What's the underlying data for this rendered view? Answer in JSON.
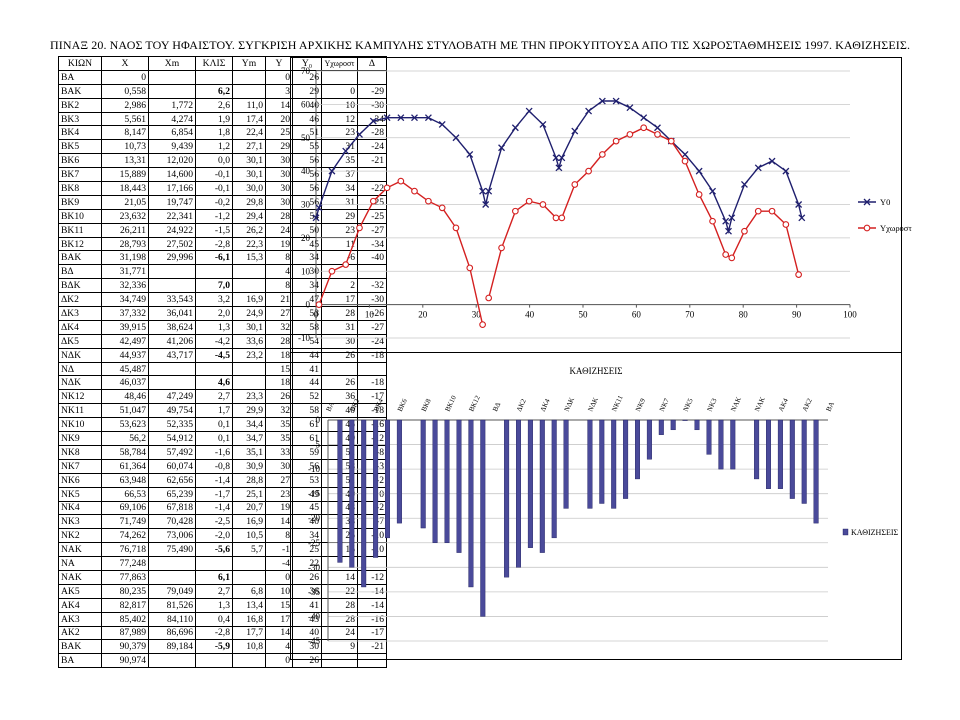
{
  "title": "ΠΙΝΑΞ 20. ΝΑΟΣ ΤΟΥ ΗΦΑΙΣΤΟΥ. ΣΥΓΚΡΙΣΗ ΑΡΧΙΚΗΣ ΚΑΜΠΥΛΗΣ ΣΤΥΛΟΒΑΤΗ ΜΕ ΤΗΝ ΠΡΟΚΥΠΤΟΥΣΑ ΑΠΟ ΤΙΣ ΧΩΡΟΣΤΑΘΜΗΣΕΙΣ 1997. ΚΑΘΙΖΗΣΕΙΣ.",
  "table": {
    "headers": [
      "ΚΙΩΝ",
      "X",
      "Xm",
      "ΚΛΙΣ",
      "Ym",
      "Y",
      "Y₀",
      "Yχωροστ",
      "Δ"
    ],
    "rows": [
      [
        "ΒΑ",
        "0",
        "",
        "",
        "",
        "0",
        "26",
        "",
        ""
      ],
      [
        "ΒΑΚ",
        "0,558",
        "",
        "6,2",
        "",
        "3",
        "29",
        "0",
        "-29"
      ],
      [
        "ΒΚ2",
        "2,986",
        "1,772",
        "2,6",
        "11,0",
        "14",
        "40",
        "10",
        "-30"
      ],
      [
        "ΒΚ3",
        "5,561",
        "4,274",
        "1,9",
        "17,4",
        "20",
        "46",
        "12",
        "-34"
      ],
      [
        "ΒΚ4",
        "8,147",
        "6,854",
        "1,8",
        "22,4",
        "25",
        "51",
        "23",
        "-28"
      ],
      [
        "ΒΚ5",
        "10,73",
        "9,439",
        "1,2",
        "27,1",
        "29",
        "55",
        "31",
        "-24"
      ],
      [
        "ΒΚ6",
        "13,31",
        "12,020",
        "0,0",
        "30,1",
        "30",
        "56",
        "35",
        "-21"
      ],
      [
        "ΒΚ7",
        "15,889",
        "14,600",
        "-0,1",
        "30,1",
        "30",
        "56",
        "37",
        ""
      ],
      [
        "ΒΚ8",
        "18,443",
        "17,166",
        "-0,1",
        "30,0",
        "30",
        "56",
        "34",
        "-22"
      ],
      [
        "ΒΚ9",
        "21,05",
        "19,747",
        "-0,2",
        "29,8",
        "30",
        "56",
        "31",
        "-25"
      ],
      [
        "ΒΚ10",
        "23,632",
        "22,341",
        "-1,2",
        "29,4",
        "28",
        "54",
        "29",
        "-25"
      ],
      [
        "ΒΚ11",
        "26,211",
        "24,922",
        "-1,5",
        "26,2",
        "24",
        "50",
        "23",
        "-27"
      ],
      [
        "ΒΚ12",
        "28,793",
        "27,502",
        "-2,8",
        "22,3",
        "19",
        "45",
        "11",
        "-34"
      ],
      [
        "ΒΑΚ",
        "31,198",
        "29,996",
        "-6,1",
        "15,3",
        "8",
        "34",
        "-6",
        "-40"
      ],
      [
        "ΒΔ",
        "31,771",
        "",
        "",
        "",
        "4",
        "30",
        "",
        ""
      ],
      [
        "ΒΔΚ",
        "32,336",
        "",
        "7,0",
        "",
        "8",
        "34",
        "2",
        "-32"
      ],
      [
        "ΔΚ2",
        "34,749",
        "33,543",
        "3,2",
        "16,9",
        "21",
        "47",
        "17",
        "-30"
      ],
      [
        "ΔΚ3",
        "37,332",
        "36,041",
        "2,0",
        "24,9",
        "27",
        "53",
        "28",
        "-26"
      ],
      [
        "ΔΚ4",
        "39,915",
        "38,624",
        "1,3",
        "30,1",
        "32",
        "58",
        "31",
        "-27"
      ],
      [
        "ΔΚ5",
        "42,497",
        "41,206",
        "-4,2",
        "33,6",
        "28",
        "54",
        "30",
        "-24"
      ],
      [
        "ΝΔΚ",
        "44,937",
        "43,717",
        "-4,5",
        "23,2",
        "18",
        "44",
        "26",
        "-18"
      ],
      [
        "ΝΔ",
        "45,487",
        "",
        "",
        "",
        "15",
        "41",
        "",
        ""
      ],
      [
        "ΝΔΚ",
        "46,037",
        "",
        "4,6",
        "",
        "18",
        "44",
        "26",
        "-18"
      ],
      [
        "ΝΚ12",
        "48,46",
        "47,249",
        "2,7",
        "23,3",
        "26",
        "52",
        "36",
        "-17"
      ],
      [
        "ΝΚ11",
        "51,047",
        "49,754",
        "1,7",
        "29,9",
        "32",
        "58",
        "40",
        "-18"
      ],
      [
        "ΝΚ10",
        "53,623",
        "52,335",
        "0,1",
        "34,4",
        "35",
        "61",
        "45",
        "-16"
      ],
      [
        "ΝΚ9",
        "56,2",
        "54,912",
        "0,1",
        "34,7",
        "35",
        "61",
        "49",
        "-12"
      ],
      [
        "ΝΚ8",
        "58,784",
        "57,492",
        "-1,6",
        "35,1",
        "33",
        "59",
        "51",
        "-8"
      ],
      [
        "ΝΚ7",
        "61,364",
        "60,074",
        "-0,8",
        "30,9",
        "30",
        "56",
        "53",
        "-3"
      ],
      [
        "ΝΚ6",
        "63,948",
        "62,656",
        "-1,4",
        "28,8",
        "27",
        "53",
        "51",
        "-2"
      ],
      [
        "ΝΚ5",
        "66,53",
        "65,239",
        "-1,7",
        "25,1",
        "23",
        "49",
        "49",
        "0"
      ],
      [
        "ΝΚ4",
        "69,106",
        "67,818",
        "-1,4",
        "20,7",
        "19",
        "45",
        "43",
        "-2"
      ],
      [
        "ΝΚ3",
        "71,749",
        "70,428",
        "-2,5",
        "16,9",
        "14",
        "40",
        "33",
        "-7"
      ],
      [
        "ΝΚ2",
        "74,262",
        "73,006",
        "-2,0",
        "10,5",
        "8",
        "34",
        "25",
        "-10"
      ],
      [
        "ΝΑΚ",
        "76,718",
        "75,490",
        "-5,6",
        "5,7",
        "-1",
        "25",
        "15",
        "-10"
      ],
      [
        "ΝΑ",
        "77,248",
        "",
        "",
        "",
        "-4",
        "22",
        "",
        ""
      ],
      [
        "ΝΑΚ",
        "77,863",
        "",
        "6,1",
        "",
        "0",
        "26",
        "14",
        "-12"
      ],
      [
        "ΑΚ5",
        "80,235",
        "79,049",
        "2,7",
        "6,8",
        "10",
        "36",
        "22",
        "-14"
      ],
      [
        "ΑΚ4",
        "82,817",
        "81,526",
        "1,3",
        "13,4",
        "15",
        "41",
        "28",
        "-14"
      ],
      [
        "ΑΚ3",
        "85,402",
        "84,110",
        "0,4",
        "16,8",
        "17",
        "43",
        "28",
        "-16"
      ],
      [
        "ΑΚ2",
        "87,989",
        "86,696",
        "-2,8",
        "17,7",
        "14",
        "40",
        "24",
        "-17"
      ],
      [
        "ΒΑΚ",
        "90,379",
        "89,184",
        "-5,9",
        "10,8",
        "4",
        "30",
        "9",
        "-21"
      ],
      [
        "ΒΑ",
        "90,974",
        "",
        "",
        "",
        "0",
        "26",
        "",
        ""
      ]
    ]
  },
  "chart_data": [
    {
      "type": "line",
      "title": "",
      "xlim": [
        0,
        100
      ],
      "ylim": [
        -10,
        70
      ],
      "xticks": [
        "0",
        "10",
        "20",
        "30",
        "40",
        "50",
        "60",
        "70",
        "80",
        "90",
        "100"
      ],
      "yticks": [
        "70",
        "60",
        "50",
        "40",
        "30",
        "20",
        "10",
        "0",
        "-10"
      ],
      "grid": true,
      "legend": "right",
      "series": [
        {
          "name": "Y0",
          "color": "#1f1f6e",
          "marker": "x",
          "x": [
            0,
            0.558,
            2.986,
            5.561,
            8.147,
            10.73,
            13.31,
            15.889,
            18.443,
            21.05,
            23.632,
            26.211,
            28.793,
            31.198,
            31.771,
            32.336,
            34.749,
            37.332,
            39.915,
            42.497,
            44.937,
            45.487,
            46.037,
            48.46,
            51.047,
            53.623,
            56.2,
            58.784,
            61.364,
            63.948,
            66.53,
            69.106,
            71.749,
            74.262,
            76.718,
            77.248,
            77.863,
            80.235,
            82.817,
            85.402,
            87.989,
            90.379,
            90.974
          ],
          "y": [
            26,
            29,
            40,
            46,
            51,
            55,
            56,
            56,
            56,
            56,
            54,
            50,
            45,
            34,
            30,
            34,
            47,
            53,
            58,
            54,
            44,
            41,
            44,
            52,
            58,
            61,
            61,
            59,
            56,
            53,
            49,
            45,
            40,
            34,
            25,
            22,
            26,
            36,
            41,
            43,
            40,
            30,
            26
          ]
        },
        {
          "name": "Yχωροστ",
          "color": "#d42020",
          "marker": "o",
          "x": [
            0.558,
            2.986,
            5.561,
            8.147,
            10.73,
            13.31,
            15.889,
            18.443,
            21.05,
            23.632,
            26.211,
            28.793,
            31.198,
            null,
            32.336,
            34.749,
            37.332,
            39.915,
            42.497,
            44.937,
            46.037,
            48.46,
            51.047,
            53.623,
            56.2,
            58.784,
            61.364,
            63.948,
            66.53,
            69.106,
            71.749,
            74.262,
            76.718,
            77.863,
            80.235,
            82.817,
            85.402,
            87.989,
            90.379
          ],
          "y": [
            0,
            10,
            12,
            23,
            31,
            35,
            37,
            34,
            31,
            29,
            23,
            11,
            -6,
            null,
            2,
            17,
            28,
            31,
            30,
            26,
            26,
            36,
            40,
            45,
            49,
            51,
            53,
            51,
            49,
            43,
            33,
            25,
            15,
            14,
            22,
            28,
            28,
            24,
            9
          ]
        }
      ]
    },
    {
      "type": "bar",
      "title": "ΚΑΘΙΖΗΣΕΙΣ",
      "ylim": [
        -45,
        0
      ],
      "yticks": [
        "0",
        "-5",
        "-10",
        "-15",
        "-20",
        "-25",
        "-30",
        "-35",
        "-40",
        "-45"
      ],
      "grid": true,
      "legend": "right",
      "series": [
        {
          "name": "ΚΑΘΙΖΗΣΕΙΣ",
          "color": "#4a4a9a"
        }
      ],
      "categories": [
        "ΒΑ",
        "ΒΑΚ",
        "ΒΚ2",
        "ΒΚ3",
        "ΒΚ4",
        "ΒΚ5",
        "ΒΚ6",
        "ΒΚ7",
        "ΒΚ8",
        "ΒΚ9",
        "ΒΚ10",
        "ΒΚ11",
        "ΒΚ12",
        "ΒΑΚ",
        "ΒΔ",
        "ΒΔΚ",
        "ΔΚ2",
        "ΔΚ3",
        "ΔΚ4",
        "ΔΚ5",
        "ΝΔΚ",
        "ΝΔ",
        "ΝΔΚ",
        "ΝΚ12",
        "ΝΚ11",
        "ΝΚ10",
        "ΝΚ9",
        "ΝΚ8",
        "ΝΚ7",
        "ΝΚ6",
        "ΝΚ5",
        "ΝΚ4",
        "ΝΚ3",
        "ΝΚ2",
        "ΝΑΚ",
        "ΝΑ",
        "ΝΑΚ",
        "ΑΚ5",
        "ΑΚ4",
        "ΑΚ3",
        "ΑΚ2",
        "ΒΑΚ",
        "ΒΑ"
      ],
      "xtick_labels": [
        "ΒΑ",
        "",
        "ΒΚ2",
        "",
        "ΒΚ4",
        "",
        "ΒΚ6",
        "",
        "ΒΚ8",
        "",
        "ΒΚ10",
        "",
        "ΒΚ12",
        "",
        "ΒΔ",
        "",
        "ΔΚ2",
        "",
        "ΔΚ4",
        "",
        "ΝΔΚ",
        "",
        "ΝΔΚ",
        "",
        "ΝΚ11",
        "",
        "ΝΚ9",
        "",
        "ΝΚ7",
        "",
        "ΝΚ5",
        "",
        "ΝΚ3",
        "",
        "ΝΑΚ",
        "",
        "ΝΑΚ",
        "",
        "ΑΚ4",
        "",
        "ΑΚ2",
        "",
        "ΒΑ"
      ],
      "values": [
        null,
        -29,
        -30,
        -34,
        -28,
        -24,
        -21,
        null,
        -22,
        -25,
        -25,
        -27,
        -34,
        -40,
        null,
        -32,
        -30,
        -26,
        -27,
        -24,
        -18,
        null,
        -18,
        -17,
        -18,
        -16,
        -12,
        -8,
        -3,
        -2,
        0,
        -2,
        -7,
        -10,
        -10,
        null,
        -12,
        -14,
        -14,
        -16,
        -17,
        -21,
        null
      ]
    }
  ]
}
